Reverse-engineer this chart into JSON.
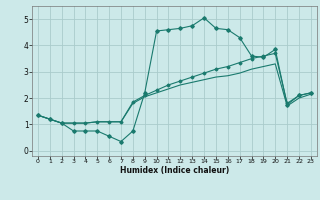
{
  "xlabel": "Humidex (Indice chaleur)",
  "bg_color": "#cce9e9",
  "grid_color": "#aacccc",
  "line_color": "#1a7a6e",
  "xlim": [
    -0.5,
    23.5
  ],
  "ylim": [
    -0.2,
    5.5
  ],
  "xticks": [
    0,
    1,
    2,
    3,
    4,
    5,
    6,
    7,
    8,
    9,
    10,
    11,
    12,
    13,
    14,
    15,
    16,
    17,
    18,
    19,
    20,
    21,
    22,
    23
  ],
  "yticks": [
    0,
    1,
    2,
    3,
    4,
    5
  ],
  "line1_x": [
    0,
    1,
    2,
    3,
    4,
    5,
    6,
    7,
    8,
    9,
    10,
    11,
    12,
    13,
    14,
    15,
    16,
    17,
    18,
    19,
    20,
    21,
    22,
    23
  ],
  "line1_y": [
    1.35,
    1.2,
    1.05,
    0.75,
    0.75,
    0.75,
    0.55,
    0.35,
    0.75,
    2.2,
    4.55,
    4.6,
    4.65,
    4.75,
    5.05,
    4.65,
    4.6,
    4.3,
    3.6,
    3.55,
    3.85,
    1.75,
    2.1,
    2.2
  ],
  "line2_x": [
    0,
    1,
    2,
    3,
    4,
    5,
    6,
    7,
    8,
    9,
    10,
    11,
    12,
    13,
    14,
    15,
    16,
    17,
    18,
    19,
    20,
    21,
    22,
    23
  ],
  "line2_y": [
    1.35,
    1.2,
    1.05,
    1.05,
    1.05,
    1.1,
    1.1,
    1.1,
    1.85,
    2.1,
    2.3,
    2.5,
    2.65,
    2.8,
    2.95,
    3.1,
    3.2,
    3.35,
    3.5,
    3.6,
    3.7,
    1.8,
    2.1,
    2.2
  ],
  "line3_x": [
    0,
    1,
    2,
    3,
    4,
    5,
    6,
    7,
    8,
    9,
    10,
    11,
    12,
    13,
    14,
    15,
    16,
    17,
    18,
    19,
    20,
    21,
    22,
    23
  ],
  "line3_y": [
    1.35,
    1.2,
    1.05,
    1.05,
    1.05,
    1.1,
    1.1,
    1.1,
    1.8,
    2.05,
    2.2,
    2.35,
    2.5,
    2.6,
    2.7,
    2.8,
    2.85,
    2.95,
    3.1,
    3.2,
    3.3,
    1.7,
    2.0,
    2.15
  ]
}
